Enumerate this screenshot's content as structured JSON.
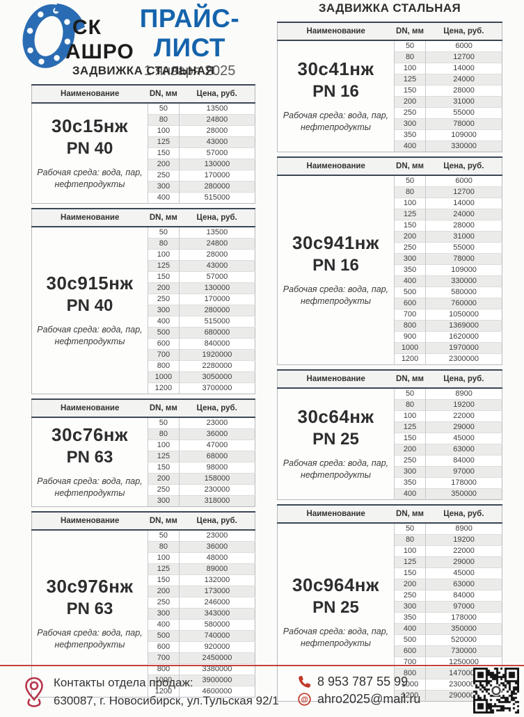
{
  "header": {
    "logo_line1": "СК",
    "logo_line2": "АШРО",
    "title": "ПРАЙС-ЛИСТ",
    "date": "1 января 2025"
  },
  "sections": {
    "left_title": "ЗАДВИЖКА СТАЛЬНАЯ",
    "right_title": "ЗАДВИЖКА СТАЛЬНАЯ"
  },
  "table_header": {
    "name": "Наименование",
    "dn": "DN, мм",
    "price": "Цена, руб."
  },
  "medium_line1": "Рабочая среда: вода, пар,",
  "medium_line2": "нефтепродукты",
  "columns": {
    "left": [
      {
        "model": "30с15нж",
        "pn": "PN 40",
        "rows": [
          [
            "50",
            "13500"
          ],
          [
            "80",
            "24800"
          ],
          [
            "100",
            "28000"
          ],
          [
            "125",
            "43000"
          ],
          [
            "150",
            "57000"
          ],
          [
            "200",
            "130000"
          ],
          [
            "250",
            "170000"
          ],
          [
            "300",
            "280000"
          ],
          [
            "400",
            "515000"
          ]
        ]
      },
      {
        "model": "30с915нж",
        "pn": "PN 40",
        "rows": [
          [
            "50",
            "13500"
          ],
          [
            "80",
            "24800"
          ],
          [
            "100",
            "28000"
          ],
          [
            "125",
            "43000"
          ],
          [
            "150",
            "57000"
          ],
          [
            "200",
            "130000"
          ],
          [
            "250",
            "170000"
          ],
          [
            "300",
            "280000"
          ],
          [
            "400",
            "515000"
          ],
          [
            "500",
            "680000"
          ],
          [
            "600",
            "840000"
          ],
          [
            "700",
            "1920000"
          ],
          [
            "800",
            "2280000"
          ],
          [
            "1000",
            "3050000"
          ],
          [
            "1200",
            "3700000"
          ]
        ]
      },
      {
        "model": "30с76нж",
        "pn": "PN 63",
        "rows": [
          [
            "50",
            "23000"
          ],
          [
            "80",
            "36000"
          ],
          [
            "100",
            "47000"
          ],
          [
            "125",
            "68000"
          ],
          [
            "150",
            "98000"
          ],
          [
            "200",
            "158000"
          ],
          [
            "250",
            "230000"
          ],
          [
            "300",
            "318000"
          ]
        ]
      },
      {
        "model": "30с976нж",
        "pn": "PN 63",
        "rows": [
          [
            "50",
            "23000"
          ],
          [
            "80",
            "36000"
          ],
          [
            "100",
            "48000"
          ],
          [
            "125",
            "89000"
          ],
          [
            "150",
            "132000"
          ],
          [
            "200",
            "173000"
          ],
          [
            "250",
            "246000"
          ],
          [
            "300",
            "343000"
          ],
          [
            "400",
            "580000"
          ],
          [
            "500",
            "740000"
          ],
          [
            "600",
            "920000"
          ],
          [
            "700",
            "2450000"
          ],
          [
            "800",
            "3380000"
          ],
          [
            "1000",
            "3900000"
          ],
          [
            "1200",
            "4600000"
          ]
        ]
      }
    ],
    "right": [
      {
        "model": "30с41нж",
        "pn": "PN 16",
        "rows": [
          [
            "50",
            "6000"
          ],
          [
            "80",
            "12700"
          ],
          [
            "100",
            "14000"
          ],
          [
            "125",
            "24000"
          ],
          [
            "150",
            "28000"
          ],
          [
            "200",
            "31000"
          ],
          [
            "250",
            "55000"
          ],
          [
            "300",
            "78000"
          ],
          [
            "350",
            "109000"
          ],
          [
            "400",
            "330000"
          ]
        ]
      },
      {
        "model": "30с941нж",
        "pn": "PN 16",
        "rows": [
          [
            "50",
            "6000"
          ],
          [
            "80",
            "12700"
          ],
          [
            "100",
            "14000"
          ],
          [
            "125",
            "24000"
          ],
          [
            "150",
            "28000"
          ],
          [
            "200",
            "31000"
          ],
          [
            "250",
            "55000"
          ],
          [
            "300",
            "78000"
          ],
          [
            "350",
            "109000"
          ],
          [
            "400",
            "330000"
          ],
          [
            "500",
            "580000"
          ],
          [
            "600",
            "760000"
          ],
          [
            "700",
            "1050000"
          ],
          [
            "800",
            "1369000"
          ],
          [
            "900",
            "1620000"
          ],
          [
            "1000",
            "1970000"
          ],
          [
            "1200",
            "2300000"
          ]
        ]
      },
      {
        "model": "30с64нж",
        "pn": "PN 25",
        "rows": [
          [
            "50",
            "8900"
          ],
          [
            "80",
            "19200"
          ],
          [
            "100",
            "22000"
          ],
          [
            "125",
            "29000"
          ],
          [
            "150",
            "45000"
          ],
          [
            "200",
            "63000"
          ],
          [
            "250",
            "84000"
          ],
          [
            "300",
            "97000"
          ],
          [
            "350",
            "178000"
          ],
          [
            "400",
            "350000"
          ]
        ]
      },
      {
        "model": "30с964нж",
        "pn": "PN 25",
        "rows": [
          [
            "50",
            "8900"
          ],
          [
            "80",
            "19200"
          ],
          [
            "100",
            "22000"
          ],
          [
            "125",
            "29000"
          ],
          [
            "150",
            "45000"
          ],
          [
            "200",
            "63000"
          ],
          [
            "250",
            "84000"
          ],
          [
            "300",
            "97000"
          ],
          [
            "350",
            "178000"
          ],
          [
            "400",
            "350000"
          ],
          [
            "500",
            "520000"
          ],
          [
            "600",
            "730000"
          ],
          [
            "700",
            "1250000"
          ],
          [
            "800",
            "1470000"
          ],
          [
            "1000",
            "2300000"
          ],
          [
            "1200",
            "2900000"
          ]
        ]
      }
    ]
  },
  "footer": {
    "contacts_title": "Контакты отдела продаж:",
    "address": "630087, г. Новосибирск, ул.Тульская 92/1",
    "phone": "8 953 787 55 99",
    "email": "ahro2025@mail.ru"
  },
  "colors": {
    "accent_blue": "#1563ac",
    "logo_blue": "#2a6cb3",
    "footer_red": "#c4403d",
    "table_header_border": "#394653"
  }
}
